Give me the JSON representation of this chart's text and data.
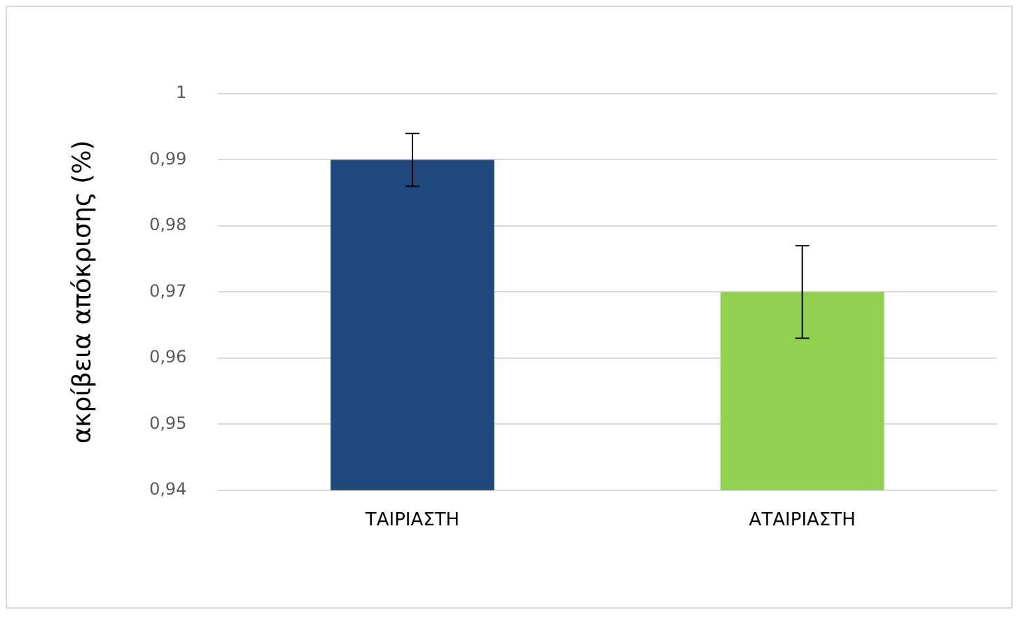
{
  "chart_data": {
    "type": "bar",
    "ylabel": "ακρίβεια απόκρισης (%)",
    "categories": [
      "ΤΑΙΡΙΑΣΤΗ",
      "ΑΤΑΙΡΙΑΣΤΗ"
    ],
    "values": [
      0.99,
      0.97
    ],
    "colors": [
      "#1f497d",
      "#92d050"
    ],
    "errors": [
      0.004,
      0.007
    ],
    "ylim": [
      0.94,
      1
    ],
    "yticks": [
      {
        "value": 0.94,
        "label": "0,94"
      },
      {
        "value": 0.95,
        "label": "0,95"
      },
      {
        "value": 0.96,
        "label": "0,96"
      },
      {
        "value": 0.97,
        "label": "0,97"
      },
      {
        "value": 0.98,
        "label": "0,98"
      },
      {
        "value": 0.99,
        "label": "0,99"
      },
      {
        "value": 1,
        "label": "1"
      }
    ],
    "grid": "y",
    "legend": false
  }
}
